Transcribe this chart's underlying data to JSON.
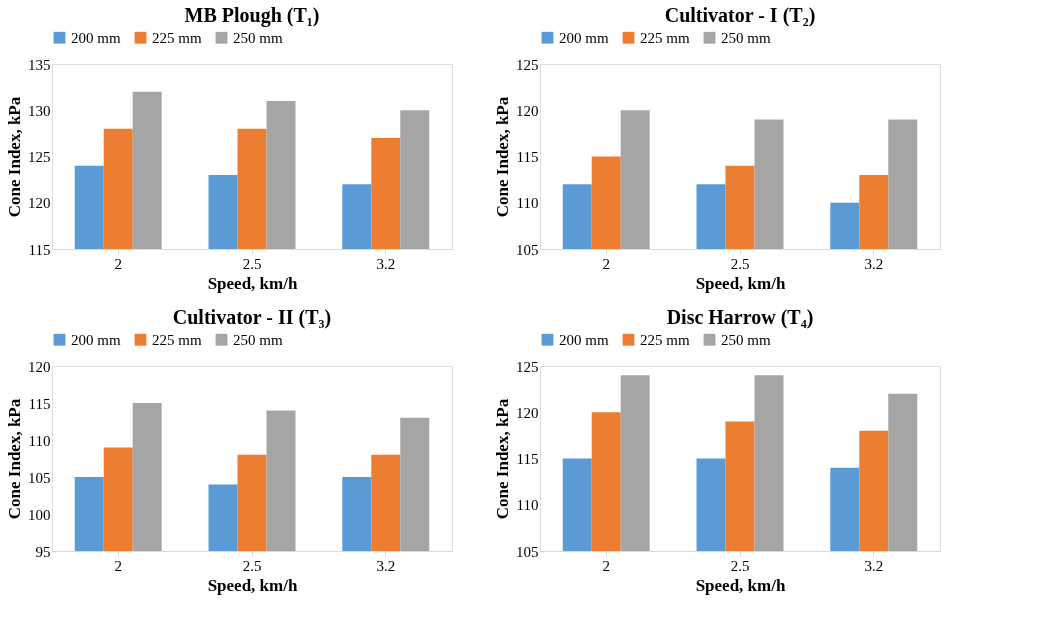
{
  "chart_data": [
    {
      "type": "bar",
      "title": "MB Plough (T₁)",
      "xlabel": "Speed, km/h",
      "ylabel": "Cone Index, kPa",
      "categories": [
        "2",
        "2.5",
        "3.2"
      ],
      "ylim": [
        115,
        135
      ],
      "yticks": [
        115,
        120,
        125,
        130,
        135
      ],
      "grid": false,
      "legend": "top",
      "series": [
        {
          "name": "200 mm",
          "color": "#5b9bd5",
          "values": [
            124,
            123,
            122
          ]
        },
        {
          "name": "225 mm",
          "color": "#ed7d31",
          "values": [
            128,
            128,
            127
          ]
        },
        {
          "name": "250 mm",
          "color": "#a5a5a5",
          "values": [
            132,
            131,
            130
          ]
        }
      ]
    },
    {
      "type": "bar",
      "title": "Cultivator - I (T₂)",
      "xlabel": "Speed, km/h",
      "ylabel": "Cone Index, kPa",
      "categories": [
        "2",
        "2.5",
        "3.2"
      ],
      "ylim": [
        105,
        125
      ],
      "yticks": [
        105,
        110,
        115,
        120,
        125
      ],
      "grid": false,
      "legend": "top",
      "series": [
        {
          "name": "200 mm",
          "color": "#5b9bd5",
          "values": [
            112,
            112,
            110
          ]
        },
        {
          "name": "225 mm",
          "color": "#ed7d31",
          "values": [
            115,
            114,
            113
          ]
        },
        {
          "name": "250 mm",
          "color": "#a5a5a5",
          "values": [
            120,
            119,
            119
          ]
        }
      ]
    },
    {
      "type": "bar",
      "title": "Cultivator - II (T₃)",
      "xlabel": "Speed, km/h",
      "ylabel": "Cone Index, kPa",
      "categories": [
        "2",
        "2.5",
        "3.2"
      ],
      "ylim": [
        95,
        120
      ],
      "yticks": [
        95,
        100,
        105,
        110,
        115,
        120
      ],
      "grid": false,
      "legend": "top",
      "series": [
        {
          "name": "200 mm",
          "color": "#5b9bd5",
          "values": [
            105,
            104,
            105
          ]
        },
        {
          "name": "225 mm",
          "color": "#ed7d31",
          "values": [
            109,
            108,
            108
          ]
        },
        {
          "name": "250 mm",
          "color": "#a5a5a5",
          "values": [
            115,
            114,
            113
          ]
        }
      ]
    },
    {
      "type": "bar",
      "title": "Disc Harrow (T₄)",
      "xlabel": "Speed, km/h",
      "ylabel": "Cone Index, kPa",
      "categories": [
        "2",
        "2.5",
        "3.2"
      ],
      "ylim": [
        105,
        125
      ],
      "yticks": [
        105,
        110,
        115,
        120,
        125
      ],
      "grid": false,
      "legend": "top",
      "series": [
        {
          "name": "200 mm",
          "color": "#5b9bd5",
          "values": [
            115,
            115,
            114
          ]
        },
        {
          "name": "225 mm",
          "color": "#ed7d31",
          "values": [
            120,
            119,
            118
          ]
        },
        {
          "name": "250 mm",
          "color": "#a5a5a5",
          "values": [
            124,
            124,
            122
          ]
        }
      ]
    }
  ]
}
